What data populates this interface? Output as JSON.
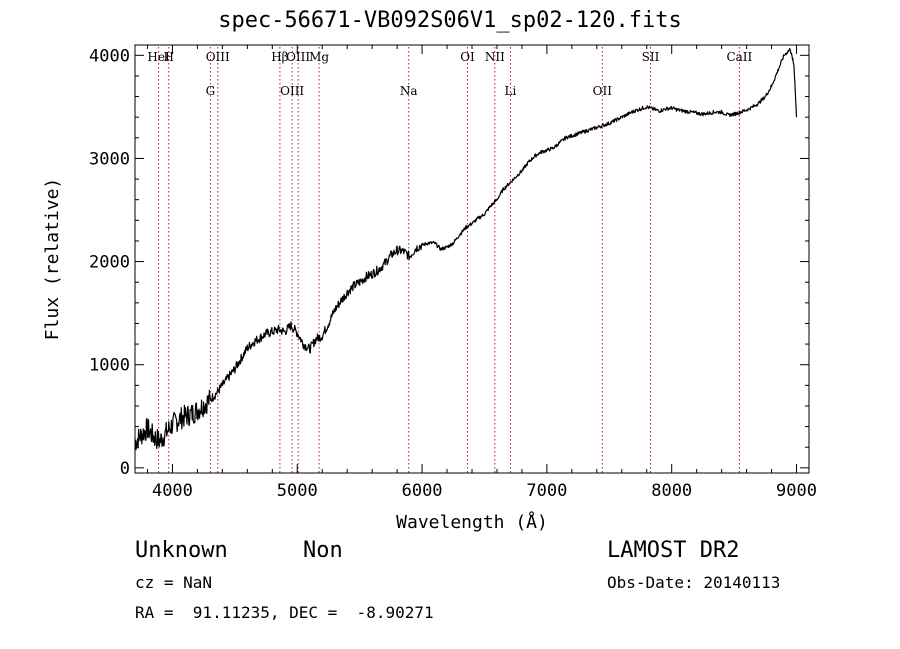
{
  "header": {
    "title": "spec-56671-VB092S06V1_sp02-120.fits"
  },
  "info": {
    "class": "Unknown",
    "subclass": "Non",
    "survey": "LAMOST DR2",
    "cz": "cz = NaN",
    "obs_date": "Obs-Date: 20140113",
    "radec": "RA =  91.11235, DEC =  -8.90271"
  },
  "chart_data": {
    "type": "line",
    "title": "spec-56671-VB092S06V1_sp02-120.fits",
    "xlabel": "Wavelength (Å)",
    "ylabel": "Flux (relative)",
    "xlim": [
      3700,
      9100
    ],
    "ylim": [
      -50,
      4100
    ],
    "x_ticks": [
      4000,
      5000,
      6000,
      7000,
      8000,
      9000
    ],
    "y_ticks": [
      0,
      1000,
      2000,
      3000,
      4000
    ],
    "grid": false,
    "line_color": "#000000",
    "marker_color": "#b22222",
    "series": [
      {
        "x": [
          3700,
          3750,
          3800,
          3850,
          3900,
          3950,
          4000,
          4050,
          4100,
          4150,
          4200,
          4250,
          4300,
          4350,
          4400,
          4450,
          4500,
          4550,
          4600,
          4650,
          4700,
          4750,
          4800,
          4850,
          4900,
          4950,
          5000,
          5050,
          5100,
          5150,
          5200,
          5250,
          5300,
          5350,
          5400,
          5450,
          5500,
          5550,
          5600,
          5650,
          5700,
          5750,
          5800,
          5850,
          5900,
          5950,
          6000,
          6050,
          6100,
          6150,
          6200,
          6250,
          6300,
          6350,
          6400,
          6450,
          6500,
          6550,
          6600,
          6650,
          6700,
          6750,
          6800,
          6850,
          6900,
          6950,
          7000,
          7050,
          7100,
          7150,
          7200,
          7250,
          7300,
          7350,
          7400,
          7450,
          7500,
          7550,
          7600,
          7650,
          7700,
          7750,
          7800,
          7850,
          7900,
          7950,
          8000,
          8050,
          8100,
          8150,
          8200,
          8250,
          8300,
          8350,
          8400,
          8450,
          8500,
          8550,
          8600,
          8650,
          8700,
          8750,
          8800,
          8850,
          8900,
          8950,
          8980,
          9000
        ],
        "y": [
          250,
          320,
          380,
          300,
          260,
          340,
          420,
          470,
          500,
          520,
          560,
          610,
          660,
          720,
          800,
          880,
          960,
          1060,
          1160,
          1220,
          1260,
          1300,
          1320,
          1340,
          1320,
          1380,
          1310,
          1200,
          1150,
          1250,
          1280,
          1400,
          1530,
          1620,
          1700,
          1760,
          1800,
          1850,
          1880,
          1920,
          1980,
          2060,
          2110,
          2100,
          2050,
          2130,
          2160,
          2180,
          2180,
          2120,
          2140,
          2180,
          2260,
          2330,
          2370,
          2420,
          2460,
          2540,
          2600,
          2700,
          2760,
          2820,
          2880,
          2960,
          3020,
          3060,
          3080,
          3100,
          3150,
          3200,
          3220,
          3240,
          3260,
          3280,
          3300,
          3320,
          3340,
          3370,
          3400,
          3430,
          3460,
          3480,
          3500,
          3480,
          3460,
          3480,
          3490,
          3470,
          3460,
          3450,
          3440,
          3430,
          3440,
          3450,
          3450,
          3420,
          3430,
          3450,
          3470,
          3500,
          3540,
          3600,
          3700,
          3850,
          4000,
          4060,
          3900,
          3400
        ]
      }
    ],
    "line_markers": [
      {
        "x": 3889,
        "top": "HeI",
        "bottom": ""
      },
      {
        "x": 3970,
        "top": "H",
        "bottom": ""
      },
      {
        "x": 4304,
        "top": "",
        "bottom": "G"
      },
      {
        "x": 4363,
        "top": "OIII",
        "bottom": ""
      },
      {
        "x": 4861,
        "top": "Hβ",
        "bottom": ""
      },
      {
        "x": 4959,
        "top": "",
        "bottom": "OIII"
      },
      {
        "x": 5007,
        "top": "OIII",
        "bottom": ""
      },
      {
        "x": 5175,
        "top": "Mg",
        "bottom": ""
      },
      {
        "x": 5893,
        "top": "",
        "bottom": "Na"
      },
      {
        "x": 6364,
        "top": "OI",
        "bottom": ""
      },
      {
        "x": 6583,
        "top": "NII",
        "bottom": ""
      },
      {
        "x": 6708,
        "top": "",
        "bottom": "Li"
      },
      {
        "x": 7444,
        "top": "",
        "bottom": "OII"
      },
      {
        "x": 7830,
        "top": "SII",
        "bottom": ""
      },
      {
        "x": 8542,
        "top": "CaII",
        "bottom": ""
      }
    ]
  }
}
